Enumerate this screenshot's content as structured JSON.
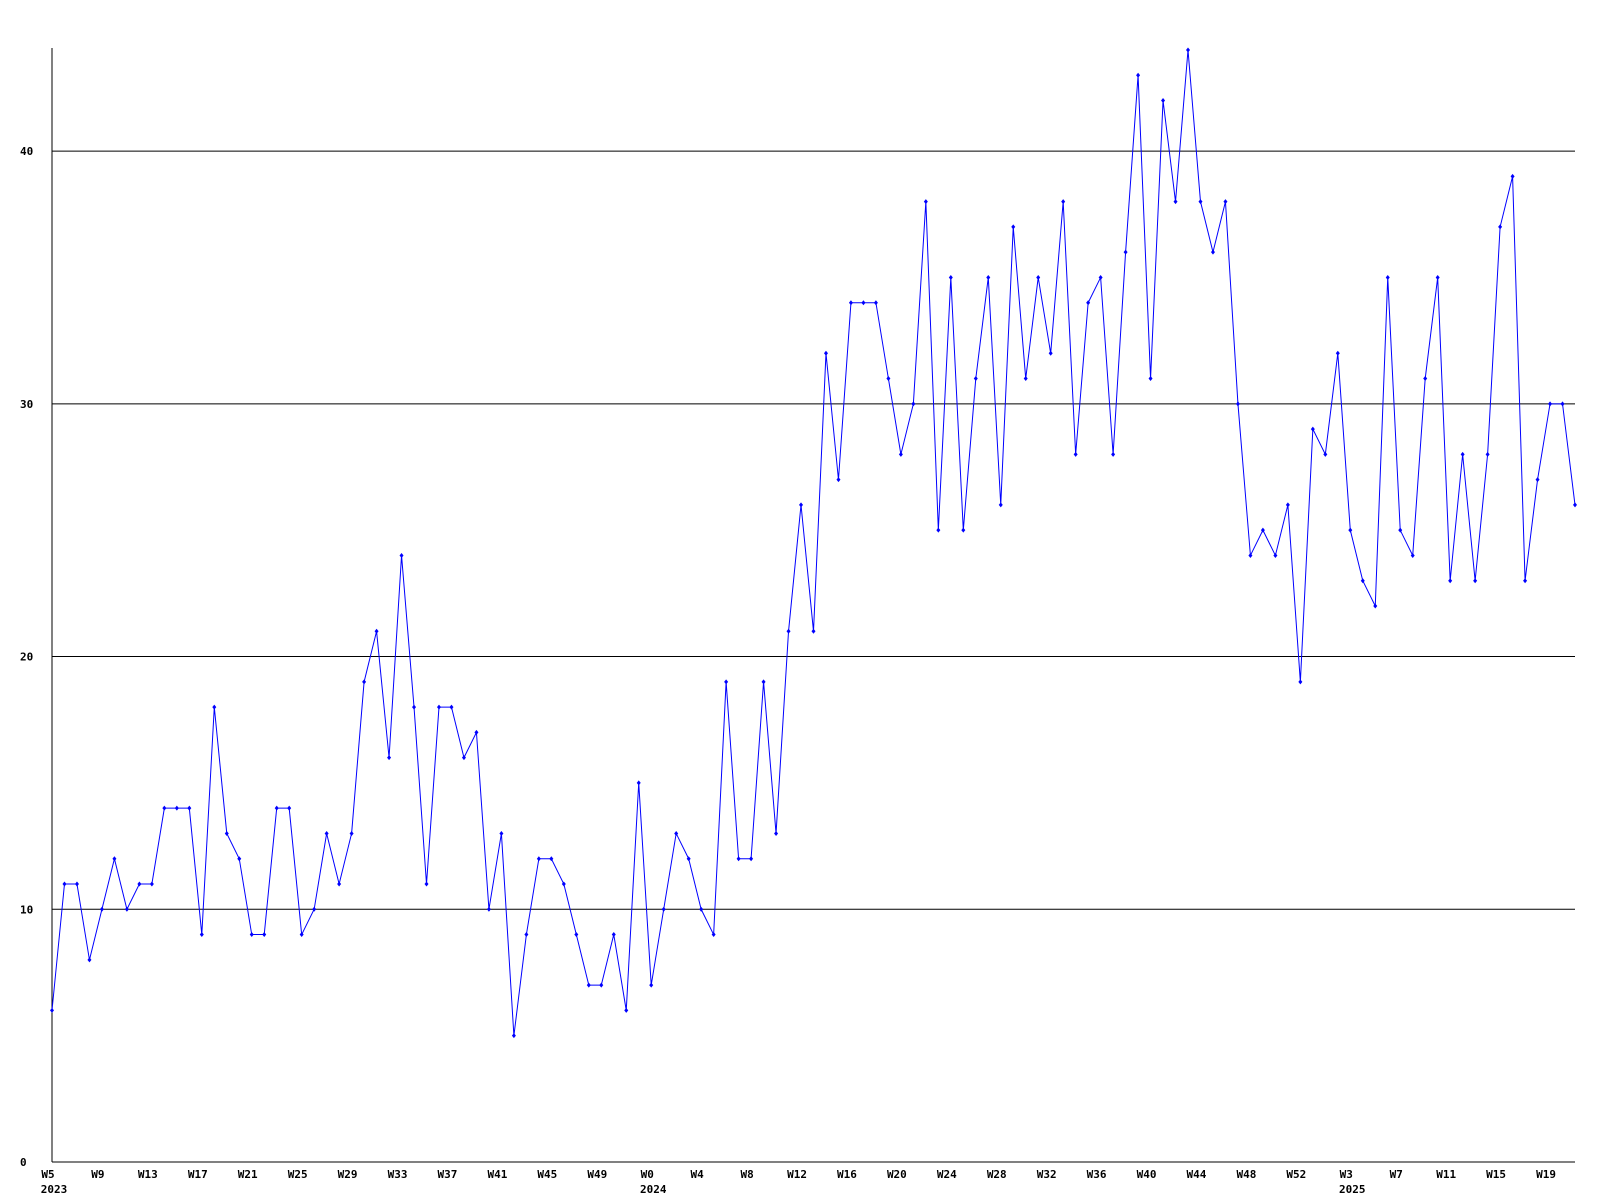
{
  "chart_data": {
    "type": "line",
    "categories": [
      "W5",
      null,
      null,
      null,
      "W9",
      null,
      null,
      null,
      "W13",
      null,
      null,
      null,
      "W17",
      null,
      null,
      null,
      "W21",
      null,
      null,
      null,
      "W25",
      null,
      null,
      null,
      "W29",
      null,
      null,
      null,
      "W33",
      null,
      null,
      null,
      "W37",
      null,
      null,
      null,
      "W41",
      null,
      null,
      null,
      "W45",
      null,
      null,
      null,
      "W49",
      null,
      null,
      null,
      "W0",
      null,
      null,
      null,
      "W4",
      null,
      null,
      null,
      "W8",
      null,
      null,
      null,
      "W12",
      null,
      null,
      null,
      "W16",
      null,
      null,
      null,
      "W20",
      null,
      null,
      null,
      "W24",
      null,
      null,
      null,
      "W28",
      null,
      null,
      null,
      "W32",
      null,
      null,
      null,
      "W36",
      null,
      null,
      null,
      "W40",
      null,
      null,
      null,
      "W44",
      null,
      null,
      null,
      "W48",
      null,
      null,
      null,
      "W52",
      null,
      null,
      null,
      "W3",
      null,
      null,
      null,
      "W7",
      null,
      null,
      null,
      "W11",
      null,
      null,
      null,
      "W15",
      null,
      null,
      null,
      "W19",
      null,
      null
    ],
    "category_sublabels": [
      "2023",
      null,
      null,
      null,
      null,
      null,
      null,
      null,
      null,
      null,
      null,
      null,
      null,
      null,
      null,
      null,
      null,
      null,
      null,
      null,
      null,
      null,
      null,
      null,
      null,
      null,
      null,
      null,
      null,
      null,
      null,
      null,
      null,
      null,
      null,
      null,
      null,
      null,
      null,
      null,
      null,
      null,
      null,
      null,
      null,
      null,
      null,
      null,
      "2024",
      null,
      null,
      null,
      null,
      null,
      null,
      null,
      null,
      null,
      null,
      null,
      null,
      null,
      null,
      null,
      null,
      null,
      null,
      null,
      null,
      null,
      null,
      null,
      null,
      null,
      null,
      null,
      null,
      null,
      null,
      null,
      null,
      null,
      null,
      null,
      null,
      null,
      null,
      null,
      null,
      null,
      null,
      null,
      null,
      null,
      null,
      null,
      null,
      null,
      null,
      null,
      null,
      null,
      null,
      null,
      "2025",
      null,
      null,
      null,
      null,
      null,
      null,
      null,
      null,
      null,
      null,
      null,
      null,
      null,
      null,
      null,
      null,
      null
    ],
    "values": [
      6,
      11,
      11,
      8,
      10,
      12,
      10,
      11,
      11,
      14,
      14,
      14,
      9,
      18,
      13,
      12,
      9,
      9,
      14,
      14,
      9,
      10,
      13,
      11,
      13,
      19,
      21,
      16,
      24,
      18,
      11,
      18,
      18,
      16,
      17,
      10,
      13,
      5,
      9,
      12,
      12,
      11,
      9,
      7,
      7,
      9,
      6,
      15,
      7,
      10,
      13,
      12,
      10,
      9,
      19,
      12,
      12,
      19,
      13,
      21,
      26,
      21,
      32,
      27,
      34,
      34,
      34,
      31,
      28,
      30,
      38,
      25,
      35,
      25,
      31,
      35,
      26,
      37,
      31,
      35,
      32,
      38,
      28,
      34,
      35,
      28,
      36,
      43,
      31,
      42,
      38,
      44,
      38,
      36,
      38,
      30,
      24,
      25,
      24,
      26,
      19,
      29,
      28,
      32,
      25,
      23,
      22,
      35,
      25,
      24,
      31,
      35,
      23,
      28,
      23,
      28,
      37,
      39,
      23,
      27,
      30,
      30,
      26
    ],
    "color": "#0000ff",
    "ylim": [
      0,
      44
    ],
    "yticks": [
      0,
      10,
      20,
      30,
      40
    ],
    "grid": true
  }
}
